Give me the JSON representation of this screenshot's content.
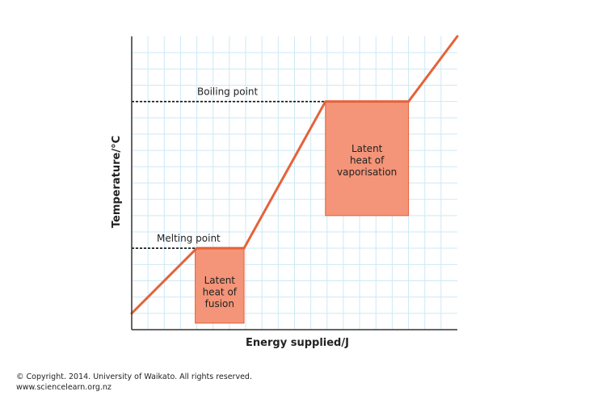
{
  "chart_data": {
    "type": "line",
    "title": "",
    "xlabel": "Energy supplied/J",
    "ylabel": "Temperature/°C",
    "xlim": [
      0,
      20
    ],
    "ylim": [
      0,
      18
    ],
    "grid": true,
    "tick_labels_shown": false,
    "series": [
      {
        "x": [
          0,
          4,
          6.9,
          11.9,
          17,
          20
        ],
        "y": [
          1,
          5,
          5,
          14,
          14,
          18
        ]
      }
    ],
    "annotations": [
      {
        "text": "Melting point",
        "kind": "reference-line",
        "y": 5,
        "x_range": [
          0,
          4
        ]
      },
      {
        "text": "Boiling point",
        "kind": "reference-line",
        "y": 14,
        "x_range": [
          0,
          11.9
        ]
      }
    ],
    "regions": [
      {
        "lines": [
          "Latent",
          "heat of",
          "fusion"
        ],
        "x_range": [
          3.9,
          6.9
        ],
        "y_range": [
          0.4,
          5
        ]
      },
      {
        "lines": [
          "Latent",
          "heat of",
          "vaporisation"
        ],
        "x_range": [
          11.9,
          17
        ],
        "y_range": [
          7,
          14
        ]
      }
    ],
    "colors": {
      "line": "#e5623a",
      "box_fill": "#f49478",
      "box_stroke": "#e3603a",
      "grid": "#cde9f5",
      "axis": "#333333",
      "reference_line": "#111111"
    }
  },
  "credits": {
    "line1": "© Copyright. 2014. University of Waikato. All rights reserved.",
    "line2": "www.sciencelearn.org.nz"
  }
}
